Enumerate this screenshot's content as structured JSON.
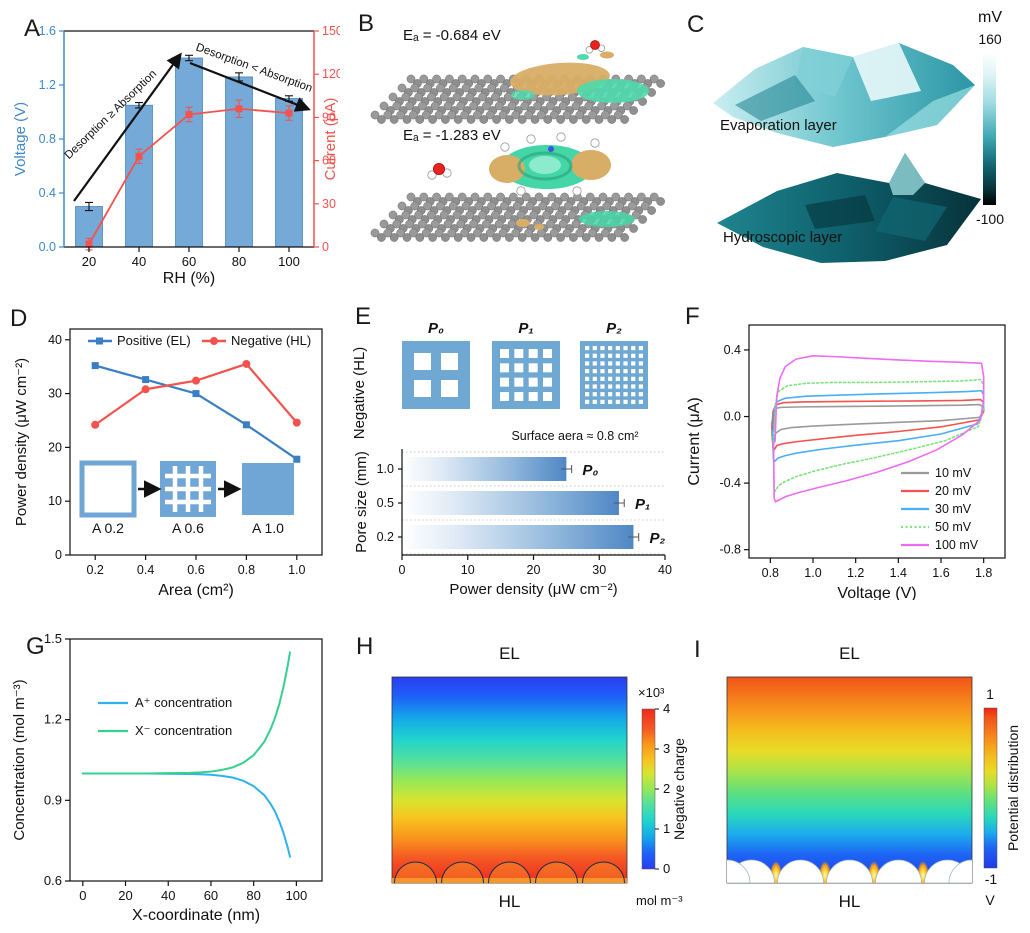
{
  "panels": {
    "A": {
      "letter": "A"
    },
    "B": {
      "letter": "B",
      "ea_top": "Eₐ = -0.684 eV",
      "ea_bottom": "Eₐ = -1.283 eV"
    },
    "C": {
      "letter": "C",
      "label_top": "Evaporation layer",
      "label_bottom": "Hydroscopic layer",
      "cb_title": "mV",
      "cb_max": "160",
      "cb_min": "-100"
    },
    "D": {
      "letter": "D"
    },
    "E": {
      "letter": "E"
    },
    "F": {
      "letter": "F"
    },
    "G": {
      "letter": "G"
    },
    "H": {
      "letter": "H"
    },
    "I": {
      "letter": "I"
    }
  },
  "chart_data": [
    {
      "panel": "A",
      "type": "bar+line",
      "categories": [
        20,
        40,
        60,
        80,
        100
      ],
      "xlabel": "RH (%)",
      "ylabel_left": "Voltage (V)",
      "ylabel_right": "Current (μA)",
      "ylim_left": [
        0,
        1.6
      ],
      "yticks_left": [
        "0.0",
        "0.4",
        "0.8",
        "1.2",
        "1.6"
      ],
      "ylim_right": [
        0,
        150
      ],
      "yticks_right": [
        "0",
        "30",
        "60",
        "90",
        "120",
        "150"
      ],
      "axis_colors": {
        "left": "#3f88c9",
        "right": "#f2534e",
        "x": "#111111"
      },
      "series": [
        {
          "name": "Voltage",
          "style": "bar",
          "color": "#74a9d8",
          "values": [
            0.3,
            1.05,
            1.4,
            1.26,
            1.1
          ],
          "errors": [
            0.03,
            0.02,
            0.02,
            0.03,
            0.02
          ]
        },
        {
          "name": "Current",
          "style": "line",
          "marker": "square",
          "color": "#f2534e",
          "values": [
            2,
            63,
            92,
            96,
            93
          ],
          "errors": [
            4,
            5,
            5,
            6,
            5
          ]
        }
      ],
      "annotations": [
        {
          "text": "Desorption ≥ Absorption",
          "rotate": -44
        },
        {
          "text": "Desorption < Absorption",
          "rotate": 20
        }
      ]
    },
    {
      "panel": "D",
      "type": "line",
      "x": [
        0.2,
        0.4,
        0.6,
        0.8,
        1.0
      ],
      "xlabel": "Area (cm²)",
      "ylabel": "Power density (μW cm⁻²)",
      "ylim": [
        0,
        42
      ],
      "yticks": [
        "0",
        "10",
        "20",
        "30",
        "40"
      ],
      "xticks": [
        "0.2",
        "0.4",
        "0.6",
        "0.8",
        "1.0"
      ],
      "series": [
        {
          "name": "Positive (EL)",
          "color": "#3a7ec6",
          "marker": "square",
          "values": [
            35.2,
            32.6,
            30.0,
            24.2,
            17.8
          ]
        },
        {
          "name": "Negative (HL)",
          "color": "#f2534e",
          "marker": "circle",
          "values": [
            24.2,
            30.8,
            32.4,
            35.5,
            24.6
          ]
        }
      ],
      "inset": {
        "labels": [
          "A 0.2",
          "A 0.6",
          "A 1.0"
        ],
        "fill": "#6fa6d6"
      }
    },
    {
      "panel": "E",
      "type": "hbar",
      "side_label": "Negative (HL)",
      "patterns": [
        {
          "label": "P₀",
          "grid": 2
        },
        {
          "label": "P₁",
          "grid": 4
        },
        {
          "label": "P₂",
          "grid": 8
        }
      ],
      "note": "Surface aera ≈ 0.8 cm²",
      "ylabel": "Pore size (mm)",
      "xlabel": "Power density (μW cm⁻²)",
      "xlim": [
        0,
        40
      ],
      "xticks": [
        "0",
        "10",
        "20",
        "30",
        "40"
      ],
      "rows": [
        {
          "pore_size": "1.0",
          "label": "P₀",
          "value": 25.0,
          "error": 0.8
        },
        {
          "pore_size": "0.5",
          "label": "P₁",
          "value": 33.0,
          "error": 0.8
        },
        {
          "pore_size": "0.2",
          "label": "P₂",
          "value": 35.2,
          "error": 0.8
        }
      ],
      "pattern_color": "#6fa8d2",
      "bar_color": "#4f87c5"
    },
    {
      "panel": "F",
      "type": "cv",
      "xlabel": "Voltage (V)",
      "ylabel": "Current (μA)",
      "xlim": [
        0.7,
        1.9
      ],
      "xticks": [
        "0.8",
        "1.0",
        "1.2",
        "1.4",
        "1.6",
        "1.8"
      ],
      "ylim": [
        -0.85,
        0.55
      ],
      "yticks": [
        "-0.8",
        "-0.4",
        "0.0",
        "0.4"
      ],
      "series": [
        {
          "name": "10 mV",
          "color": "#9a9a9a",
          "dotted": false,
          "points": [
            [
              0.81,
              -0.02
            ],
            [
              0.812,
              0.03
            ],
            [
              0.82,
              0.048
            ],
            [
              0.85,
              0.055
            ],
            [
              0.95,
              0.058
            ],
            [
              1.1,
              0.06
            ],
            [
              1.3,
              0.062
            ],
            [
              1.5,
              0.065
            ],
            [
              1.7,
              0.068
            ],
            [
              1.78,
              0.072
            ],
            [
              1.795,
              0.06
            ],
            [
              1.795,
              0.02
            ],
            [
              1.78,
              -0.005
            ],
            [
              1.6,
              -0.025
            ],
            [
              1.4,
              -0.035
            ],
            [
              1.2,
              -0.045
            ],
            [
              1.0,
              -0.057
            ],
            [
              0.9,
              -0.066
            ],
            [
              0.85,
              -0.078
            ],
            [
              0.825,
              -0.1
            ],
            [
              0.812,
              -0.168
            ],
            [
              0.808,
              -0.12
            ],
            [
              0.806,
              -0.04
            ]
          ]
        },
        {
          "name": "20 mV",
          "color": "#f2534e",
          "dotted": false,
          "points": [
            [
              0.812,
              -0.05
            ],
            [
              0.816,
              0.04
            ],
            [
              0.825,
              0.07
            ],
            [
              0.86,
              0.083
            ],
            [
              0.95,
              0.088
            ],
            [
              1.1,
              0.09
            ],
            [
              1.3,
              0.092
            ],
            [
              1.5,
              0.094
            ],
            [
              1.7,
              0.097
            ],
            [
              1.785,
              0.102
            ],
            [
              1.8,
              0.085
            ],
            [
              1.8,
              0.03
            ],
            [
              1.78,
              -0.02
            ],
            [
              1.6,
              -0.062
            ],
            [
              1.4,
              -0.09
            ],
            [
              1.2,
              -0.113
            ],
            [
              1.05,
              -0.133
            ],
            [
              0.93,
              -0.15
            ],
            [
              0.86,
              -0.163
            ],
            [
              0.83,
              -0.175
            ],
            [
              0.818,
              -0.2
            ],
            [
              0.812,
              -0.185
            ],
            [
              0.809,
              -0.06
            ]
          ]
        },
        {
          "name": "30 mV",
          "color": "#4aaef8",
          "dotted": false,
          "points": [
            [
              0.815,
              -0.08
            ],
            [
              0.82,
              0.05
            ],
            [
              0.832,
              0.09
            ],
            [
              0.87,
              0.11
            ],
            [
              0.97,
              0.122
            ],
            [
              1.15,
              0.13
            ],
            [
              1.35,
              0.137
            ],
            [
              1.55,
              0.143
            ],
            [
              1.72,
              0.15
            ],
            [
              1.79,
              0.155
            ],
            [
              1.8,
              0.13
            ],
            [
              1.8,
              0.045
            ],
            [
              1.77,
              -0.045
            ],
            [
              1.6,
              -0.105
            ],
            [
              1.4,
              -0.145
            ],
            [
              1.2,
              -0.172
            ],
            [
              1.05,
              -0.195
            ],
            [
              0.93,
              -0.218
            ],
            [
              0.87,
              -0.235
            ],
            [
              0.835,
              -0.25
            ],
            [
              0.82,
              -0.27
            ],
            [
              0.814,
              -0.255
            ],
            [
              0.811,
              -0.085
            ]
          ]
        },
        {
          "name": "50 mV",
          "color": "#7de37d",
          "dotted": true,
          "points": [
            [
              0.818,
              -0.12
            ],
            [
              0.824,
              0.08
            ],
            [
              0.838,
              0.15
            ],
            [
              0.88,
              0.185
            ],
            [
              0.97,
              0.2
            ],
            [
              1.1,
              0.205
            ],
            [
              1.3,
              0.205
            ],
            [
              1.5,
              0.209
            ],
            [
              1.7,
              0.214
            ],
            [
              1.786,
              0.222
            ],
            [
              1.8,
              0.19
            ],
            [
              1.8,
              0.055
            ],
            [
              1.775,
              -0.06
            ],
            [
              1.62,
              -0.145
            ],
            [
              1.45,
              -0.2
            ],
            [
              1.28,
              -0.25
            ],
            [
              1.12,
              -0.292
            ],
            [
              1.0,
              -0.33
            ],
            [
              0.92,
              -0.362
            ],
            [
              0.87,
              -0.39
            ],
            [
              0.838,
              -0.415
            ],
            [
              0.824,
              -0.448
            ],
            [
              0.818,
              -0.43
            ],
            [
              0.814,
              -0.125
            ]
          ]
        },
        {
          "name": "100 mV",
          "color": "#ee6cf2",
          "dotted": false,
          "points": [
            [
              0.822,
              -0.15
            ],
            [
              0.83,
              0.12
            ],
            [
              0.845,
              0.23
            ],
            [
              0.87,
              0.3
            ],
            [
              0.92,
              0.345
            ],
            [
              1.0,
              0.365
            ],
            [
              1.1,
              0.36
            ],
            [
              1.25,
              0.35
            ],
            [
              1.4,
              0.34
            ],
            [
              1.55,
              0.332
            ],
            [
              1.7,
              0.326
            ],
            [
              1.79,
              0.32
            ],
            [
              1.8,
              0.24
            ],
            [
              1.8,
              0.1
            ],
            [
              1.785,
              -0.02
            ],
            [
              1.7,
              -0.11
            ],
            [
              1.58,
              -0.2
            ],
            [
              1.45,
              -0.27
            ],
            [
              1.3,
              -0.335
            ],
            [
              1.15,
              -0.388
            ],
            [
              1.02,
              -0.428
            ],
            [
              0.93,
              -0.458
            ],
            [
              0.87,
              -0.482
            ],
            [
              0.838,
              -0.503
            ],
            [
              0.824,
              -0.512
            ],
            [
              0.818,
              -0.49
            ],
            [
              0.815,
              -0.155
            ]
          ]
        }
      ]
    },
    {
      "panel": "G",
      "type": "line",
      "xlabel": "X-coordinate (nm)",
      "ylabel": "Concentration (mol m⁻³)",
      "xlim": [
        -6,
        112
      ],
      "xticks": [
        "0",
        "20",
        "40",
        "60",
        "80",
        "100"
      ],
      "ylim": [
        0.6,
        1.5
      ],
      "yticks": [
        "0.6",
        "0.9",
        "1.2",
        "1.5"
      ],
      "x": [
        0,
        10,
        20,
        30,
        40,
        50,
        55,
        60,
        65,
        70,
        75,
        80,
        85,
        88,
        90,
        92,
        94,
        96,
        97
      ],
      "series": [
        {
          "name": "A⁺ concentration",
          "color": "#2fb0ef",
          "values": [
            1.0,
            1.0,
            1.0,
            1.0,
            0.999,
            0.998,
            0.997,
            0.995,
            0.991,
            0.985,
            0.973,
            0.953,
            0.919,
            0.886,
            0.858,
            0.822,
            0.778,
            0.723,
            0.69
          ]
        },
        {
          "name": "X⁻ concentration",
          "color": "#35d08f",
          "values": [
            1.0,
            1.0,
            1.0,
            1.0,
            1.001,
            1.002,
            1.004,
            1.007,
            1.013,
            1.022,
            1.039,
            1.068,
            1.118,
            1.166,
            1.207,
            1.258,
            1.323,
            1.403,
            1.45
          ]
        }
      ]
    },
    {
      "panel": "C",
      "type": "surface3d",
      "colorbar": {
        "title": "mV",
        "tick_max": "160",
        "tick_min": "-100"
      },
      "surfaces": [
        {
          "name": "Evaporation layer"
        },
        {
          "name": "Hydroscopic layer"
        }
      ]
    },
    {
      "panel": "H",
      "type": "heatmap",
      "top_label": "EL",
      "bottom_label": "HL",
      "colorbar": {
        "multiplier": "×10³",
        "ticks": [
          "4",
          "3",
          "2",
          "1",
          "0"
        ],
        "label": "Negative charge",
        "unit": "mol m⁻³",
        "max": 4000,
        "min": 0
      }
    },
    {
      "panel": "I",
      "type": "heatmap",
      "top_label": "EL",
      "bottom_label": "HL",
      "colorbar": {
        "ticks": [
          "1",
          "-1"
        ],
        "label": "Potential distribution",
        "unit": "V",
        "max": 1,
        "min": -1
      }
    }
  ]
}
